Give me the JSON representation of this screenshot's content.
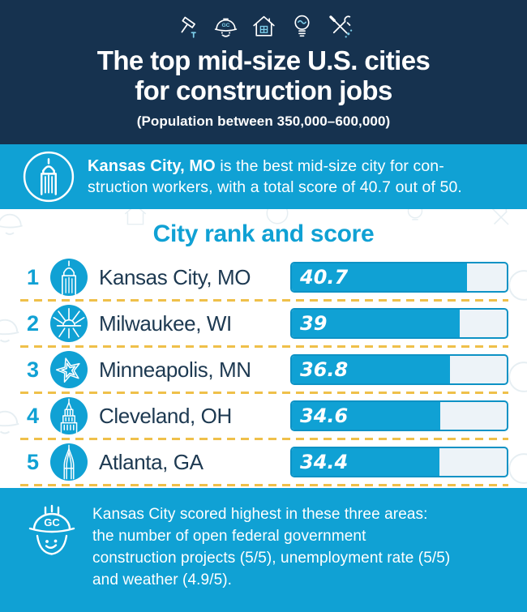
{
  "infographic": {
    "header": {
      "icons": [
        "hammer-icon",
        "hard-hat-icon",
        "house-icon",
        "lightbulb-icon",
        "tools-icon"
      ],
      "title_line1": "The top mid-size U.S. cities",
      "title_line2": "for construction jobs",
      "subtitle": "(Population between 350,000–600,000)"
    },
    "banner": {
      "icon": "kc-tower-badge-icon",
      "bold_text": "Kansas City, MO",
      "line1_rest": " is the best mid-size city for con-",
      "line2": "struction workers, with a total score of 40.7 out of 50."
    },
    "footer": {
      "icon": "gc-hard-hat-icon",
      "lines": [
        "Kansas City scored highest in these three areas:",
        "the number of open federal government",
        "construction projects (5/5), unemployment rate (5/5)",
        "and weather (4.9/5)."
      ]
    },
    "colors": {
      "navy": "#16324F",
      "cyan": "#10A1D4",
      "bar_track": "#EDF3F8",
      "bar_border": "#0D92C5",
      "dash_yellow": "#EFC04A",
      "text_dark": "#1D3951"
    }
  },
  "chart_data": {
    "type": "bar",
    "title": "City rank and score",
    "ranks": [
      1,
      2,
      3,
      4,
      5
    ],
    "categories": [
      "Kansas City, MO",
      "Milwaukee, WI",
      "Minneapolis, MN",
      "Cleveland, OH",
      "Atlanta, GA"
    ],
    "values": [
      40.7,
      39,
      36.8,
      34.6,
      34.4
    ],
    "xlim": [
      0,
      50
    ],
    "max": 50,
    "orientation": "horizontal",
    "grid": false,
    "legend": false,
    "icons": [
      "kc-tower-icon",
      "milwaukee-art-museum-icon",
      "minneapolis-star-icon",
      "cleveland-terminal-tower-icon",
      "atlanta-spire-icon"
    ]
  }
}
